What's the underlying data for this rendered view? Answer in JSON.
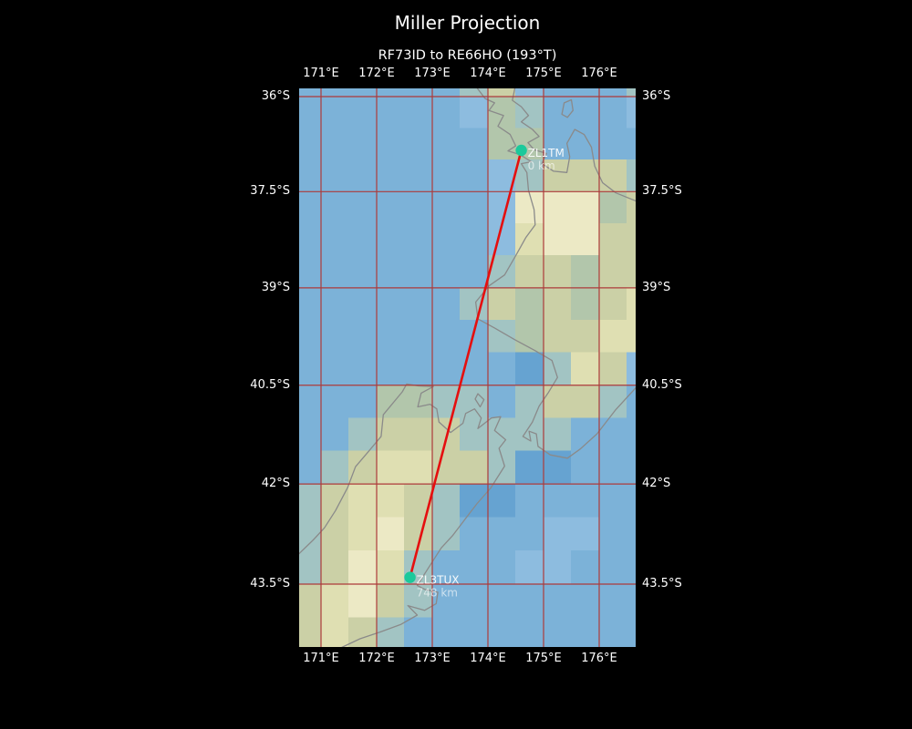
{
  "figure": {
    "title": "Miller Projection",
    "subtitle": "RF73ID to RE66HO (193°T)",
    "background_color": "#000000",
    "text_color": "#ffffff"
  },
  "map": {
    "projection": "Miller",
    "gridline_color": "#ad3a3a",
    "coastline_color": "#8a8a8a",
    "ocean_color": "#7cb2d8",
    "x_axis": {
      "ticks": [
        {
          "label": "171°E",
          "lon": 171
        },
        {
          "label": "172°E",
          "lon": 172
        },
        {
          "label": "173°E",
          "lon": 173
        },
        {
          "label": "174°E",
          "lon": 174
        },
        {
          "label": "175°E",
          "lon": 175
        },
        {
          "label": "176°E",
          "lon": 176
        }
      ]
    },
    "y_axis": {
      "ticks": [
        {
          "label": "36°S",
          "lat": 36
        },
        {
          "label": "37.5°S",
          "lat": 37.5
        },
        {
          "label": "39°S",
          "lat": 39
        },
        {
          "label": "40.5°S",
          "lat": 40.5
        },
        {
          "label": "42°S",
          "lat": 42
        },
        {
          "label": "43.5°S",
          "lat": 43.5
        }
      ]
    },
    "terrain": {
      "palette": {
        "o": "#7cb2d8",
        "O": "#8dbcdf",
        "d": "#66a3d1",
        "t": "#a2c4c3",
        "G": "#b2c6ab",
        "g": "#cbd0a6",
        "k": "#dfdfb2",
        "K": "#ece9c5"
      },
      "lon_start": 170.5,
      "lat_start": 35.5,
      "cell_deg": 0.5,
      "rows": [
        "ooooootgOooot",
        "ooooooOGtoooO",
        "oooooooGGoooo",
        "oooooooOtgggt",
        "oooooooOKKKGg",
        "oooooooOkKKgg",
        "oooooootggGgg",
        "ooooootgGgGgk",
        "oooooootGggkk",
        "oooooooodtkgO",
        "oooGGttotggto",
        "ootgggttttooo",
        "otgkkggtddooo",
        "tgkkgtddooooo",
        "tgkKgtoooOOoo",
        "tgKktoooOOooo",
        "gkKgtoooooooo",
        "gkgtooooooooo"
      ]
    }
  },
  "route": {
    "line_color": "#e50f0f",
    "marker_color": "#1bc99b",
    "bearing": "193°T",
    "distance_km": 748,
    "points": [
      {
        "name": "ZL1TM",
        "distance_label": "0 km",
        "lon": 174.6,
        "lat": 36.85
      },
      {
        "name": "ZL3TUX",
        "distance_label": "748 km",
        "lon": 172.6,
        "lat": 43.4
      }
    ]
  }
}
